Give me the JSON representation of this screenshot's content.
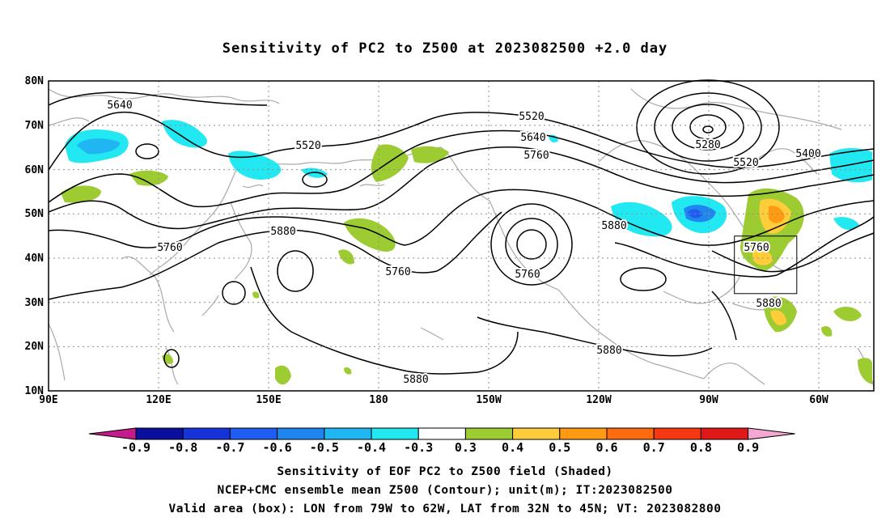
{
  "title": "Sensitivity of PC2 to Z500 at 2023082500 +2.0 day",
  "map": {
    "lat_labels": [
      "80N",
      "70N",
      "60N",
      "50N",
      "40N",
      "30N",
      "20N",
      "10N"
    ],
    "lon_labels": [
      "90E",
      "120E",
      "150E",
      "180",
      "150W",
      "120W",
      "90W",
      "60W"
    ],
    "domain": {
      "lon_range": [
        90,
        315
      ],
      "lat_range": [
        10,
        80
      ]
    },
    "valid_box": {
      "lon": [
        281,
        298
      ],
      "lat": [
        32,
        45
      ]
    },
    "contour_labels": [
      "5640",
      "5520",
      "5520",
      "5640",
      "5760",
      "5280",
      "5400",
      "5520",
      "5760",
      "5880",
      "5760",
      "5760",
      "5880",
      "5760",
      "5880",
      "5880",
      "5880"
    ]
  },
  "colorbar": {
    "labels": [
      "-0.9",
      "-0.8",
      "-0.7",
      "-0.6",
      "-0.5",
      "-0.4",
      "-0.3",
      "0.3",
      "0.4",
      "0.5",
      "0.6",
      "0.7",
      "0.8",
      "0.9"
    ],
    "colors": [
      "#c51b8a",
      "#0a0f9e",
      "#1533d8",
      "#1f5cf2",
      "#1f86f0",
      "#1fb6f2",
      "#22e8f2",
      "#ffffff",
      "#9dcc32",
      "#ffcd3a",
      "#ff9a14",
      "#ff6a0f",
      "#f53812",
      "#e01818",
      "#f4a7d1"
    ]
  },
  "captions": {
    "line1": "Sensitivity of EOF PC2 to Z500 field (Shaded)",
    "line2": "NCEP+CMC ensemble mean Z500 (Contour); unit(m); IT:2023082500",
    "line3": "Valid area (box): LON from 79W to 62W, LAT from 32N to 45N; VT: 2023082800"
  }
}
